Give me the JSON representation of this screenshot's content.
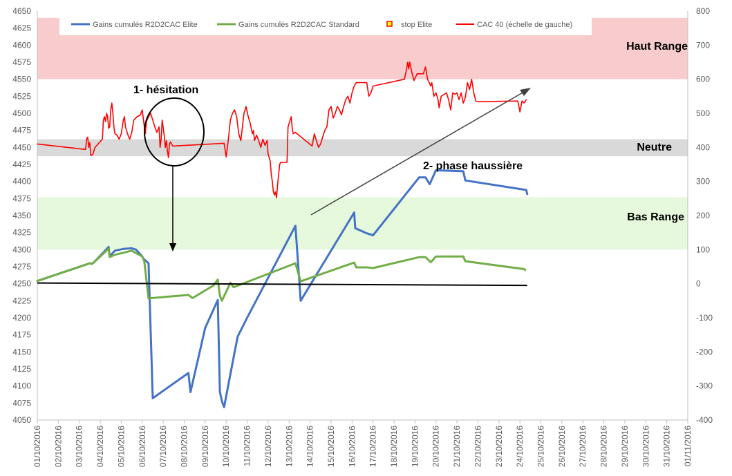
{
  "chart_data": {
    "type": "line",
    "x_labels": [
      "01/10/2016",
      "02/10/2016",
      "03/10/2016",
      "04/10/2016",
      "05/10/2016",
      "06/10/2016",
      "07/10/2016",
      "08/10/2016",
      "09/10/2016",
      "10/10/2016",
      "11/10/2016",
      "12/10/2016",
      "13/10/2016",
      "14/10/2016",
      "15/10/2016",
      "16/10/2016",
      "17/10/2016",
      "18/10/2016",
      "19/10/2016",
      "20/10/2016",
      "21/10/2016",
      "22/10/2016",
      "23/10/2016",
      "24/10/2016",
      "25/10/2016",
      "26/10/2016",
      "27/10/2016",
      "28/10/2016",
      "29/10/2016",
      "30/10/2016",
      "31/10/2016",
      "01/11/2016"
    ],
    "y_left": {
      "min": 4050,
      "max": 4650,
      "step": 25
    },
    "y_right": {
      "min": -400,
      "max": 800,
      "step": 100
    },
    "bands": [
      {
        "label": "Haut Range",
        "from": 4550,
        "to": 4640,
        "color": "#f8cccc"
      },
      {
        "label": "Neutre",
        "from": 4437,
        "to": 4462,
        "color": "#d9d9d9"
      },
      {
        "label": "Bas Range",
        "from": 4300,
        "to": 4377,
        "color": "#e6f9dc"
      }
    ],
    "legend": {
      "elite": "Gains cumulés R2D2CAC Elite",
      "standard": "Gains cumulés R2D2CAC Standard",
      "stop": "stop Elite",
      "cac": "CAC 40 (échelle de gauche)"
    },
    "annotations": {
      "hesitation": "1- hésitation",
      "phase": "2- phase haussière"
    },
    "colors": {
      "elite": "#4472c4",
      "standard": "#70ad47",
      "cac": "#ff0000",
      "stop": "#ffff00",
      "stop_border": "#ff0000",
      "zero": "#000000"
    },
    "series": [
      {
        "name": "CAC 40 (échelle de gauche)",
        "axis": "left",
        "color": "#ff0000",
        "points": [
          [
            0,
            4455
          ],
          [
            2.3,
            4447
          ],
          [
            2.35,
            4462
          ],
          [
            2.4,
            4465
          ],
          [
            2.45,
            4450
          ],
          [
            2.5,
            4457
          ],
          [
            2.55,
            4438
          ],
          [
            2.65,
            4440
          ],
          [
            2.75,
            4450
          ],
          [
            3.1,
            4462
          ],
          [
            3.15,
            4490
          ],
          [
            3.2,
            4495
          ],
          [
            3.25,
            4488
          ],
          [
            3.3,
            4500
          ],
          [
            3.35,
            4495
          ],
          [
            3.4,
            4478
          ],
          [
            3.45,
            4480
          ],
          [
            3.5,
            4505
          ],
          [
            3.55,
            4515
          ],
          [
            3.6,
            4500
          ],
          [
            3.65,
            4480
          ],
          [
            3.7,
            4470
          ],
          [
            3.8,
            4468
          ],
          [
            3.9,
            4462
          ],
          [
            4.0,
            4470
          ],
          [
            4.1,
            4490
          ],
          [
            4.15,
            4495
          ],
          [
            4.2,
            4480
          ],
          [
            4.3,
            4470
          ],
          [
            4.4,
            4462
          ],
          [
            4.5,
            4472
          ],
          [
            4.6,
            4490
          ],
          [
            4.75,
            4495
          ],
          [
            4.9,
            4497
          ],
          [
            5.0,
            4505
          ],
          [
            5.1,
            4480
          ],
          [
            5.15,
            4470
          ],
          [
            5.2,
            4488
          ],
          [
            5.3,
            4495
          ],
          [
            5.4,
            4500
          ],
          [
            5.5,
            4490
          ],
          [
            5.6,
            4480
          ],
          [
            5.7,
            4472
          ],
          [
            5.8,
            4480
          ],
          [
            5.85,
            4450
          ],
          [
            5.9,
            4462
          ],
          [
            5.95,
            4490
          ],
          [
            6.05,
            4467
          ],
          [
            6.1,
            4450
          ],
          [
            6.15,
            4460
          ],
          [
            6.2,
            4445
          ],
          [
            6.25,
            4435
          ],
          [
            6.3,
            4455
          ],
          [
            6.35,
            4458
          ],
          [
            6.45,
            4452
          ],
          [
            8.9,
            4456
          ],
          [
            9.0,
            4436
          ],
          [
            9.1,
            4460
          ],
          [
            9.2,
            4490
          ],
          [
            9.3,
            4500
          ],
          [
            9.4,
            4505
          ],
          [
            9.5,
            4495
          ],
          [
            9.6,
            4470
          ],
          [
            9.7,
            4460
          ],
          [
            9.85,
            4500
          ],
          [
            9.95,
            4510
          ],
          [
            10.05,
            4495
          ],
          [
            10.15,
            4485
          ],
          [
            10.25,
            4470
          ],
          [
            10.3,
            4475
          ],
          [
            10.35,
            4460
          ],
          [
            10.45,
            4468
          ],
          [
            10.55,
            4460
          ],
          [
            10.65,
            4450
          ],
          [
            10.75,
            4462
          ],
          [
            10.85,
            4453
          ],
          [
            10.95,
            4460
          ],
          [
            11.0,
            4440
          ],
          [
            11.1,
            4430
          ],
          [
            11.15,
            4410
          ],
          [
            11.2,
            4400
          ],
          [
            11.25,
            4385
          ],
          [
            11.3,
            4380
          ],
          [
            11.35,
            4385
          ],
          [
            11.4,
            4376
          ],
          [
            11.45,
            4395
          ],
          [
            11.55,
            4425
          ],
          [
            11.6,
            4428
          ],
          [
            11.9,
            4428
          ],
          [
            11.95,
            4480
          ],
          [
            12.05,
            4490
          ],
          [
            12.1,
            4495
          ],
          [
            12.15,
            4478
          ],
          [
            12.2,
            4470
          ],
          [
            12.3,
            4472
          ],
          [
            13.1,
            4452
          ],
          [
            13.2,
            4470
          ],
          [
            13.3,
            4460
          ],
          [
            13.4,
            4450
          ],
          [
            13.5,
            4455
          ],
          [
            13.6,
            4465
          ],
          [
            13.7,
            4475
          ],
          [
            13.8,
            4480
          ],
          [
            13.9,
            4505
          ],
          [
            14.0,
            4510
          ],
          [
            14.1,
            4493
          ],
          [
            14.2,
            4500
          ],
          [
            14.3,
            4510
          ],
          [
            14.4,
            4505
          ],
          [
            14.5,
            4498
          ],
          [
            14.6,
            4510
          ],
          [
            14.7,
            4520
          ],
          [
            14.8,
            4525
          ],
          [
            14.9,
            4515
          ],
          [
            15.0,
            4530
          ],
          [
            15.1,
            4540
          ],
          [
            15.2,
            4545
          ],
          [
            15.7,
            4545
          ],
          [
            15.8,
            4525
          ],
          [
            15.9,
            4530
          ],
          [
            16.0,
            4540
          ],
          [
            17.5,
            4550
          ],
          [
            17.6,
            4565
          ],
          [
            17.65,
            4575
          ],
          [
            17.7,
            4565
          ],
          [
            17.75,
            4575
          ],
          [
            17.85,
            4560
          ],
          [
            17.95,
            4548
          ],
          [
            18.1,
            4558
          ],
          [
            18.4,
            4558
          ],
          [
            18.5,
            4568
          ],
          [
            18.6,
            4550
          ],
          [
            18.75,
            4540
          ],
          [
            18.8,
            4545
          ],
          [
            18.9,
            4525
          ],
          [
            19.0,
            4530
          ],
          [
            19.1,
            4520
          ],
          [
            19.15,
            4508
          ],
          [
            19.25,
            4525
          ],
          [
            19.4,
            4528
          ],
          [
            19.5,
            4530
          ],
          [
            19.6,
            4520
          ],
          [
            19.7,
            4505
          ],
          [
            19.8,
            4530
          ],
          [
            19.9,
            4528
          ],
          [
            20.0,
            4530
          ],
          [
            20.1,
            4520
          ],
          [
            20.2,
            4530
          ],
          [
            20.3,
            4515
          ],
          [
            20.4,
            4523
          ],
          [
            20.5,
            4545
          ],
          [
            20.6,
            4535
          ],
          [
            20.7,
            4550
          ],
          [
            20.8,
            4530
          ],
          [
            20.9,
            4518
          ],
          [
            21.0,
            4517
          ],
          [
            22.9,
            4518
          ],
          [
            23.0,
            4502
          ],
          [
            23.1,
            4518
          ],
          [
            23.2,
            4515
          ],
          [
            23.3,
            4520
          ]
        ]
      },
      {
        "name": "Gains cumulés R2D2CAC Elite",
        "axis": "right",
        "color": "#4472c4",
        "points": [
          [
            0,
            8
          ],
          [
            2.5,
            60
          ],
          [
            2.6,
            58
          ],
          [
            2.7,
            63
          ],
          [
            3.4,
            108
          ],
          [
            3.45,
            81
          ],
          [
            3.7,
            97
          ],
          [
            4.1,
            102
          ],
          [
            4.5,
            104
          ],
          [
            4.7,
            100
          ],
          [
            5.0,
            80
          ],
          [
            5.05,
            74
          ],
          [
            5.3,
            60
          ],
          [
            5.5,
            -336
          ],
          [
            7.2,
            -262
          ],
          [
            7.3,
            -318
          ],
          [
            8.0,
            -130
          ],
          [
            8.6,
            -48
          ],
          [
            8.7,
            -317
          ],
          [
            8.8,
            -345
          ],
          [
            8.9,
            -362
          ],
          [
            9.4,
            -202
          ],
          [
            9.55,
            -155
          ],
          [
            10.0,
            -100
          ],
          [
            12.3,
            170
          ],
          [
            12.55,
            -50
          ],
          [
            15.1,
            209
          ],
          [
            15.15,
            163
          ],
          [
            15.7,
            148
          ],
          [
            16.0,
            142
          ],
          [
            18.2,
            312
          ],
          [
            18.5,
            312
          ],
          [
            18.7,
            292
          ],
          [
            19.0,
            333
          ],
          [
            20.3,
            330
          ],
          [
            20.4,
            303
          ],
          [
            23.2,
            276
          ],
          [
            23.3,
            275
          ],
          [
            23.35,
            263
          ]
        ]
      },
      {
        "name": "Gains cumulés R2D2CAC Standard",
        "axis": "right",
        "color": "#70ad47",
        "points": [
          [
            0,
            8
          ],
          [
            2.5,
            60
          ],
          [
            2.6,
            58
          ],
          [
            2.7,
            63
          ],
          [
            3.4,
            103
          ],
          [
            3.45,
            78
          ],
          [
            3.7,
            85
          ],
          [
            4.1,
            91
          ],
          [
            4.5,
            97
          ],
          [
            4.7,
            90
          ],
          [
            5.0,
            80
          ],
          [
            5.1,
            65
          ],
          [
            5.3,
            -43
          ],
          [
            7.2,
            -33
          ],
          [
            7.4,
            -42
          ],
          [
            8.4,
            -5
          ],
          [
            8.6,
            12
          ],
          [
            8.7,
            -35
          ],
          [
            8.8,
            -50
          ],
          [
            9.2,
            3
          ],
          [
            9.35,
            -10
          ],
          [
            9.45,
            -8
          ],
          [
            12.3,
            60
          ],
          [
            12.55,
            7
          ],
          [
            15.1,
            62
          ],
          [
            15.2,
            48
          ],
          [
            15.7,
            48
          ],
          [
            16.0,
            46
          ],
          [
            18.2,
            78
          ],
          [
            18.5,
            78
          ],
          [
            18.75,
            63
          ],
          [
            19.0,
            80
          ],
          [
            20.3,
            80
          ],
          [
            20.4,
            66
          ],
          [
            23.2,
            43
          ],
          [
            23.25,
            40
          ]
        ]
      }
    ],
    "zero_line": {
      "from": [
        0,
        2
      ],
      "to": [
        23.35,
        -5
      ],
      "axis": "right"
    }
  }
}
